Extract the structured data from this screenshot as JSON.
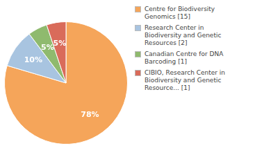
{
  "chart_data": {
    "type": "pie",
    "categories": [
      "Centre for Biodiversity\nGenomics [15]",
      "Research Center in\nBiodiversity and Genetic\nResources [2]",
      "Canadian Centre for DNA\nBarcoding [1]",
      "CIBIO, Research Center in\nBiodiversity and Genetic\nResource... [1]"
    ],
    "values": [
      78,
      10,
      5,
      5
    ],
    "value_labels": [
      "78%",
      "10%",
      "5%",
      "5%"
    ],
    "colors": [
      "#f5a55a",
      "#a8c4e0",
      "#8fba6e",
      "#d96b5a"
    ],
    "data_labels": true,
    "legend": "right"
  }
}
